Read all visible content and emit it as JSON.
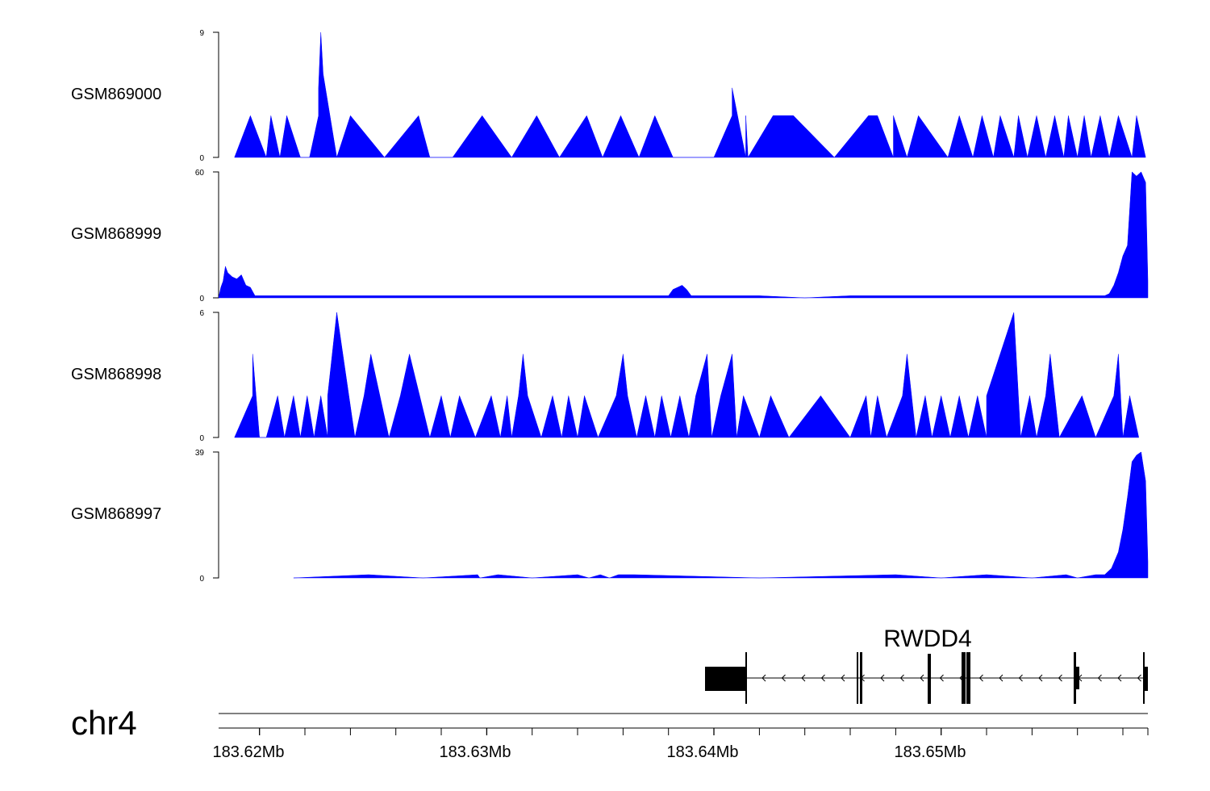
{
  "figure": {
    "chromosome": "chr4",
    "tracks": [
      {
        "name": "GSM869000",
        "ymax_label": "9",
        "ymin_label": "0"
      },
      {
        "name": "GSM868999",
        "ymax_label": "60",
        "ymin_label": "0"
      },
      {
        "name": "GSM868998",
        "ymax_label": "6",
        "ymin_label": "0"
      },
      {
        "name": "GSM868997",
        "ymax_label": "39",
        "ymin_label": "0"
      }
    ],
    "gene": {
      "name": "RWDD4"
    },
    "axis": {
      "tick_labels": [
        "183.62Mb",
        "183.63Mb",
        "183.64Mb",
        "183.65Mb"
      ]
    }
  },
  "chart_data": {
    "type": "area",
    "title": "",
    "x_unit": "Mb",
    "xlim": [
      183.6182,
      183.6591
    ],
    "x_ticks": [
      183.62,
      183.63,
      183.64,
      183.65
    ],
    "color": "#0000ff",
    "series": [
      {
        "name": "GSM869000",
        "ylim": [
          0,
          9
        ],
        "points": [
          [
            183.6189,
            0
          ],
          [
            183.6196,
            3
          ],
          [
            183.6203,
            0
          ],
          [
            183.6205,
            3
          ],
          [
            183.6209,
            0
          ],
          [
            183.6212,
            3
          ],
          [
            183.6218,
            0
          ],
          [
            183.6222,
            0
          ],
          [
            183.6226,
            3
          ],
          [
            183.6226,
            5
          ],
          [
            183.6227,
            9
          ],
          [
            183.6228,
            6
          ],
          [
            183.6234,
            0
          ],
          [
            183.624,
            3
          ],
          [
            183.6255,
            0
          ],
          [
            183.627,
            3
          ],
          [
            183.6275,
            0
          ],
          [
            183.6285,
            0
          ],
          [
            183.6298,
            3
          ],
          [
            183.6311,
            0
          ],
          [
            183.6322,
            3
          ],
          [
            183.6332,
            0
          ],
          [
            183.6344,
            3
          ],
          [
            183.6351,
            0
          ],
          [
            183.6359,
            3
          ],
          [
            183.6367,
            0
          ],
          [
            183.6374,
            3
          ],
          [
            183.6382,
            0
          ],
          [
            183.64,
            0
          ],
          [
            183.6408,
            3
          ],
          [
            183.6408,
            5
          ],
          [
            183.6414,
            0
          ],
          [
            183.6414,
            3
          ],
          [
            183.6415,
            0
          ],
          [
            183.6426,
            3
          ],
          [
            183.6435,
            3
          ],
          [
            183.6453,
            0
          ],
          [
            183.6468,
            3
          ],
          [
            183.6472,
            3
          ],
          [
            183.6479,
            0
          ],
          [
            183.6479,
            3
          ],
          [
            183.6485,
            0
          ],
          [
            183.649,
            3
          ],
          [
            183.6503,
            0
          ],
          [
            183.6508,
            3
          ],
          [
            183.6514,
            0
          ],
          [
            183.6518,
            3
          ],
          [
            183.6523,
            0
          ],
          [
            183.6526,
            3
          ],
          [
            183.6532,
            0
          ],
          [
            183.6534,
            3
          ],
          [
            183.6538,
            0
          ],
          [
            183.6542,
            3
          ],
          [
            183.6546,
            0
          ],
          [
            183.655,
            3
          ],
          [
            183.6554,
            0
          ],
          [
            183.6556,
            3
          ],
          [
            183.656,
            0
          ],
          [
            183.6563,
            3
          ],
          [
            183.6566,
            0
          ],
          [
            183.657,
            3
          ],
          [
            183.6574,
            0
          ],
          [
            183.6578,
            3
          ],
          [
            183.6584,
            0
          ],
          [
            183.6586,
            3
          ],
          [
            183.659,
            0
          ]
        ]
      },
      {
        "name": "GSM868999",
        "ylim": [
          0,
          60
        ],
        "points": [
          [
            183.6182,
            0
          ],
          [
            183.6183,
            5
          ],
          [
            183.6184,
            8
          ],
          [
            183.6185,
            15
          ],
          [
            183.6186,
            12
          ],
          [
            183.6188,
            10
          ],
          [
            183.619,
            9
          ],
          [
            183.6192,
            11
          ],
          [
            183.6194,
            6
          ],
          [
            183.6196,
            5
          ],
          [
            183.6198,
            1
          ],
          [
            183.6205,
            1
          ],
          [
            183.6215,
            1
          ],
          [
            183.623,
            1
          ],
          [
            183.6245,
            1
          ],
          [
            183.626,
            1
          ],
          [
            183.6275,
            1
          ],
          [
            183.629,
            1
          ],
          [
            183.63,
            1
          ],
          [
            183.631,
            1
          ],
          [
            183.6325,
            1
          ],
          [
            183.6345,
            1
          ],
          [
            183.636,
            1
          ],
          [
            183.6372,
            1
          ],
          [
            183.638,
            1
          ],
          [
            183.6382,
            4
          ],
          [
            183.6384,
            5
          ],
          [
            183.6386,
            6
          ],
          [
            183.6388,
            4
          ],
          [
            183.639,
            1
          ],
          [
            183.64,
            1
          ],
          [
            183.642,
            1
          ],
          [
            183.644,
            0
          ],
          [
            183.646,
            1
          ],
          [
            183.648,
            1
          ],
          [
            183.65,
            1
          ],
          [
            183.652,
            1
          ],
          [
            183.654,
            1
          ],
          [
            183.6555,
            1
          ],
          [
            183.6565,
            1
          ],
          [
            183.6572,
            1
          ],
          [
            183.6574,
            2
          ],
          [
            183.6576,
            6
          ],
          [
            183.6578,
            12
          ],
          [
            183.658,
            20
          ],
          [
            183.6582,
            25
          ],
          [
            183.6584,
            60
          ],
          [
            183.6586,
            58
          ],
          [
            183.6588,
            60
          ],
          [
            183.659,
            55
          ],
          [
            183.6591,
            8
          ]
        ]
      },
      {
        "name": "GSM868998",
        "ylim": [
          0,
          6
        ],
        "points": [
          [
            183.6189,
            0
          ],
          [
            183.6197,
            2
          ],
          [
            183.6197,
            4
          ],
          [
            183.62,
            0
          ],
          [
            183.6203,
            0
          ],
          [
            183.6208,
            2
          ],
          [
            183.6211,
            0
          ],
          [
            183.6215,
            2
          ],
          [
            183.6218,
            0
          ],
          [
            183.6221,
            2
          ],
          [
            183.6224,
            0
          ],
          [
            183.6227,
            2
          ],
          [
            183.623,
            0
          ],
          [
            183.623,
            2
          ],
          [
            183.6234,
            6
          ],
          [
            183.6242,
            0
          ],
          [
            183.6246,
            2
          ],
          [
            183.6249,
            4
          ],
          [
            183.6257,
            0
          ],
          [
            183.6262,
            2
          ],
          [
            183.6266,
            4
          ],
          [
            183.6275,
            0
          ],
          [
            183.628,
            2
          ],
          [
            183.6284,
            0
          ],
          [
            183.6288,
            2
          ],
          [
            183.6295,
            0
          ],
          [
            183.6302,
            2
          ],
          [
            183.6306,
            0
          ],
          [
            183.6309,
            2
          ],
          [
            183.6311,
            0
          ],
          [
            183.6314,
            2
          ],
          [
            183.6316,
            4
          ],
          [
            183.6318,
            2
          ],
          [
            183.6324,
            0
          ],
          [
            183.6329,
            2
          ],
          [
            183.6333,
            0
          ],
          [
            183.6336,
            2
          ],
          [
            183.634,
            0
          ],
          [
            183.6343,
            2
          ],
          [
            183.6349,
            0
          ],
          [
            183.6357,
            2
          ],
          [
            183.636,
            4
          ],
          [
            183.6362,
            2
          ],
          [
            183.6366,
            0
          ],
          [
            183.637,
            2
          ],
          [
            183.6374,
            0
          ],
          [
            183.6377,
            2
          ],
          [
            183.6381,
            0
          ],
          [
            183.6385,
            2
          ],
          [
            183.6389,
            0
          ],
          [
            183.6392,
            2
          ],
          [
            183.6397,
            4
          ],
          [
            183.6399,
            0
          ],
          [
            183.6403,
            2
          ],
          [
            183.6408,
            4
          ],
          [
            183.641,
            0
          ],
          [
            183.6413,
            2
          ],
          [
            183.642,
            0
          ],
          [
            183.6425,
            2
          ],
          [
            183.6433,
            0
          ],
          [
            183.6447,
            2
          ],
          [
            183.646,
            0
          ],
          [
            183.6467,
            2
          ],
          [
            183.6469,
            0
          ],
          [
            183.6472,
            2
          ],
          [
            183.6476,
            0
          ],
          [
            183.6483,
            2
          ],
          [
            183.6485,
            4
          ],
          [
            183.6489,
            0
          ],
          [
            183.6493,
            2
          ],
          [
            183.6496,
            0
          ],
          [
            183.65,
            2
          ],
          [
            183.6504,
            0
          ],
          [
            183.6508,
            2
          ],
          [
            183.6512,
            0
          ],
          [
            183.6516,
            2
          ],
          [
            183.652,
            0
          ],
          [
            183.652,
            2
          ],
          [
            183.6532,
            6
          ],
          [
            183.6535,
            0
          ],
          [
            183.6539,
            2
          ],
          [
            183.6542,
            0
          ],
          [
            183.6546,
            2
          ],
          [
            183.6548,
            4
          ],
          [
            183.6552,
            0
          ],
          [
            183.6562,
            2
          ],
          [
            183.6568,
            0
          ],
          [
            183.6576,
            2
          ],
          [
            183.6578,
            4
          ],
          [
            183.658,
            0
          ],
          [
            183.6583,
            2
          ],
          [
            183.6587,
            0
          ]
        ]
      },
      {
        "name": "GSM868997",
        "ylim": [
          0,
          39
        ],
        "points": [
          [
            183.6215,
            0
          ],
          [
            183.6248,
            1
          ],
          [
            183.6272,
            0
          ],
          [
            183.6296,
            1
          ],
          [
            183.6297,
            0
          ],
          [
            183.6305,
            1
          ],
          [
            183.632,
            0
          ],
          [
            183.634,
            1
          ],
          [
            183.6345,
            0
          ],
          [
            183.635,
            1
          ],
          [
            183.6354,
            0
          ],
          [
            183.6358,
            1
          ],
          [
            183.6365,
            1
          ],
          [
            183.642,
            0
          ],
          [
            183.648,
            1
          ],
          [
            183.65,
            0
          ],
          [
            183.652,
            1
          ],
          [
            183.654,
            0
          ],
          [
            183.6555,
            1
          ],
          [
            183.656,
            0
          ],
          [
            183.6568,
            1
          ],
          [
            183.6572,
            1
          ],
          [
            183.6575,
            3
          ],
          [
            183.6578,
            8
          ],
          [
            183.658,
            15
          ],
          [
            183.6582,
            25
          ],
          [
            183.6584,
            36
          ],
          [
            183.6586,
            38
          ],
          [
            183.6588,
            39
          ],
          [
            183.659,
            30
          ],
          [
            183.6591,
            5
          ]
        ]
      }
    ],
    "gene_track": {
      "name": "RWDD4",
      "strand": "-",
      "start": 183.6403,
      "end": 183.6591
    }
  }
}
